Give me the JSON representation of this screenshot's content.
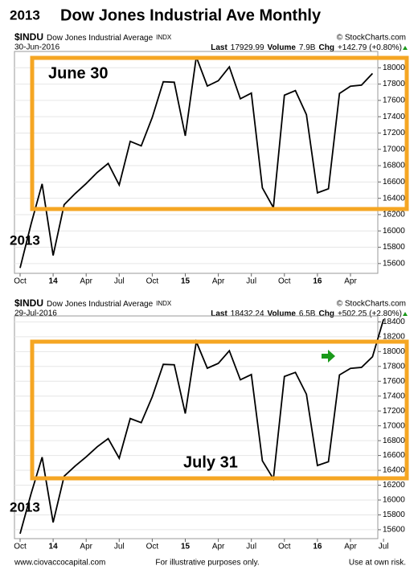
{
  "year_label": "2013",
  "title": "Dow Jones Industrial Ave Monthly",
  "footer": {
    "left": "www.ciovaccocapital.com",
    "center": "For illustrative purposes only.",
    "right": "Use at own risk."
  },
  "chart_data": [
    {
      "type": "line",
      "symbol": "$INDU",
      "name": "Dow Jones Industrial Average",
      "exchange": "INDX",
      "source": "© StockCharts.com",
      "date": "30-Jun-2016",
      "last_label": "Last",
      "last": "17929.99",
      "volume_label": "Volume",
      "volume": "7.9B",
      "chg_label": "Chg",
      "chg": "+142.79 (+0.80%)",
      "annotations": [
        "June 30",
        "2013"
      ],
      "categories": [
        "Oct",
        null,
        null,
        "14",
        null,
        null,
        "Apr",
        null,
        null,
        "Jul",
        null,
        null,
        "Oct",
        null,
        null,
        "15",
        null,
        null,
        "Apr",
        null,
        null,
        "Jul",
        null,
        null,
        "Oct",
        null,
        null,
        "16",
        null,
        null,
        "Apr",
        null,
        null
      ],
      "values": [
        15546,
        16086,
        16577,
        15699,
        16322,
        16458,
        16581,
        16717,
        16827,
        16563,
        17098,
        17043,
        17391,
        17828,
        17823,
        17165,
        18133,
        17776,
        17841,
        18011,
        17620,
        17690,
        16528,
        16285,
        17664,
        17720,
        17425,
        16466,
        16517,
        17685,
        17774,
        17787,
        17930
      ],
      "color": "#000000",
      "box_color": "#f5a623",
      "ylim": [
        15480,
        18200
      ],
      "yticks": [
        15600,
        15800,
        16000,
        16200,
        16400,
        16600,
        16800,
        17000,
        17200,
        17400,
        17600,
        17800,
        18000
      ],
      "grid": true
    },
    {
      "type": "line",
      "symbol": "$INDU",
      "name": "Dow Jones Industrial Average",
      "exchange": "INDX",
      "source": "© StockCharts.com",
      "date": "29-Jul-2016",
      "last_label": "Last",
      "last": "18432.24",
      "volume_label": "Volume",
      "volume": "6.5B",
      "chg_label": "Chg",
      "chg": "+502.25 (+2.80%)",
      "annotations": [
        "July 31",
        "2013"
      ],
      "categories": [
        "Oct",
        null,
        null,
        "14",
        null,
        null,
        "Apr",
        null,
        null,
        "Jul",
        null,
        null,
        "Oct",
        null,
        null,
        "15",
        null,
        null,
        "Apr",
        null,
        null,
        "Jul",
        null,
        null,
        "Oct",
        null,
        null,
        "16",
        null,
        null,
        "Apr",
        null,
        null,
        "Jul"
      ],
      "values": [
        15546,
        16086,
        16577,
        15699,
        16322,
        16458,
        16581,
        16717,
        16827,
        16563,
        17098,
        17043,
        17391,
        17828,
        17823,
        17165,
        18133,
        17776,
        17841,
        18011,
        17620,
        17690,
        16528,
        16285,
        17664,
        17720,
        17425,
        16466,
        16517,
        17685,
        17774,
        17787,
        17930,
        18432
      ],
      "color": "#000000",
      "box_color": "#f5a623",
      "ylim": [
        15480,
        18480
      ],
      "yticks": [
        15600,
        15800,
        16000,
        16200,
        16400,
        16600,
        16800,
        17000,
        17200,
        17400,
        17600,
        17800,
        18000,
        18200,
        18400
      ],
      "grid": true
    }
  ]
}
